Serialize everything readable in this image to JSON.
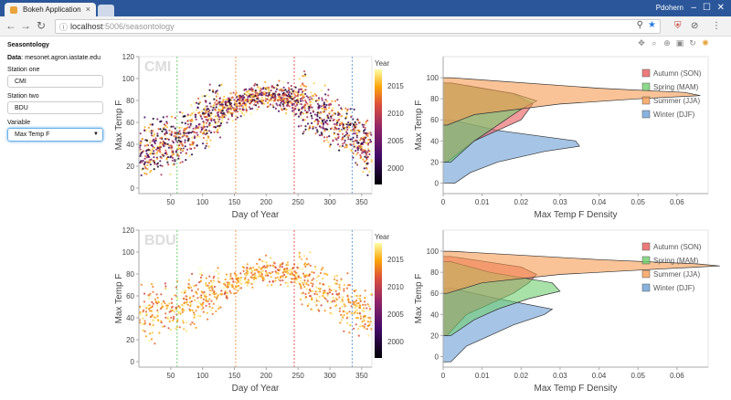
{
  "browser": {
    "tab_title": "Bokeh Application",
    "tab_close": "×",
    "user": "Pdohern",
    "url_host": "localhost",
    "url_rest": ":5006/seasontology"
  },
  "sidebar": {
    "title": "Seasontology",
    "data_label": "Data",
    "data_source": "mesonet.agron.iastate.edu",
    "station_one_label": "Station one",
    "station_one_value": "CMI",
    "station_two_label": "Station two",
    "station_two_value": "BDU",
    "variable_label": "Variable",
    "variable_value": "Max Temp F"
  },
  "scatter_axes": {
    "xlabel": "Day of Year",
    "ylabel": "Max Temp F",
    "xticks": [
      "50",
      "100",
      "150",
      "200",
      "250",
      "300",
      "350"
    ],
    "yticks": [
      "0",
      "20",
      "40",
      "60",
      "80",
      "100",
      "120"
    ],
    "colorbar_title": "Year",
    "colorbar_ticks": [
      "2000",
      "2005",
      "2010",
      "2015"
    ]
  },
  "density_axes": {
    "xlabel": "Max Temp F Density",
    "ylabel": "Max Temp F",
    "xticks": [
      "0",
      "0.01",
      "0.02",
      "0.03",
      "0.04",
      "0.05",
      "0.06"
    ],
    "yticks": [
      "0",
      "20",
      "40",
      "60",
      "80",
      "100"
    ],
    "legend": [
      "Autumn (SON)",
      "Spring (MAM)",
      "Summer (JJA)",
      "Winter (DJF)"
    ],
    "colors": [
      "#e8595a",
      "#6fcf6f",
      "#f59b52",
      "#6a9fd6"
    ]
  },
  "chart_data": [
    {
      "type": "scatter",
      "title": "CMI",
      "xlabel": "Day of Year",
      "ylabel": "Max Temp F",
      "xlim": [
        0,
        366
      ],
      "ylim": [
        -5,
        120
      ],
      "color_by": "Year",
      "color_range": [
        1997,
        2018
      ],
      "season_boundaries_doy": [
        60,
        152,
        244,
        335
      ],
      "typical_max_temp_by_doy": {
        "x": [
          1,
          60,
          120,
          200,
          260,
          335,
          366
        ],
        "y": [
          32,
          42,
          70,
          86,
          78,
          48,
          33
        ]
      }
    },
    {
      "type": "area",
      "title": "",
      "xlabel": "Max Temp F Density",
      "ylabel": "Max Temp F",
      "ylim": [
        -10,
        120
      ],
      "series": [
        {
          "name": "Autumn (SON)",
          "y": [
            20,
            40,
            50,
            60,
            70,
            75,
            85,
            95
          ],
          "density": [
            0.001,
            0.008,
            0.014,
            0.02,
            0.022,
            0.023,
            0.018,
            0.002
          ]
        },
        {
          "name": "Spring (MAM)",
          "y": [
            20,
            40,
            50,
            60,
            70,
            78,
            85,
            95
          ],
          "density": [
            0.002,
            0.008,
            0.012,
            0.016,
            0.02,
            0.024,
            0.018,
            0.002
          ]
        },
        {
          "name": "Summer (JJA)",
          "y": [
            55,
            65,
            75,
            80,
            83,
            86,
            90,
            100
          ],
          "density": [
            0.001,
            0.008,
            0.03,
            0.05,
            0.066,
            0.062,
            0.04,
            0.002
          ]
        },
        {
          "name": "Winter (DJF)",
          "y": [
            0,
            10,
            20,
            30,
            35,
            40,
            50,
            60
          ],
          "density": [
            0.003,
            0.007,
            0.014,
            0.026,
            0.035,
            0.034,
            0.014,
            0.002
          ]
        }
      ]
    },
    {
      "type": "scatter",
      "title": "BDU",
      "xlabel": "Day of Year",
      "ylabel": "Max Temp F",
      "xlim": [
        0,
        366
      ],
      "ylim": [
        -5,
        120
      ],
      "color_by": "Year",
      "color_range": [
        1997,
        2018
      ],
      "season_boundaries_doy": [
        60,
        152,
        244,
        335
      ],
      "typical_max_temp_by_doy": {
        "x": [
          1,
          60,
          120,
          200,
          260,
          335,
          366
        ],
        "y": [
          42,
          48,
          64,
          84,
          76,
          50,
          42
        ]
      }
    },
    {
      "type": "area",
      "title": "",
      "xlabel": "Max Temp F Density",
      "ylabel": "Max Temp F",
      "ylim": [
        -10,
        120
      ],
      "series": [
        {
          "name": "Autumn (SON)",
          "y": [
            20,
            40,
            50,
            60,
            70,
            78,
            85,
            95
          ],
          "density": [
            0.001,
            0.006,
            0.012,
            0.018,
            0.022,
            0.024,
            0.02,
            0.002
          ]
        },
        {
          "name": "Spring (MAM)",
          "y": [
            20,
            35,
            45,
            55,
            62,
            70,
            80,
            90
          ],
          "density": [
            0.002,
            0.008,
            0.014,
            0.022,
            0.03,
            0.028,
            0.012,
            0.002
          ]
        },
        {
          "name": "Summer (JJA)",
          "y": [
            60,
            70,
            78,
            83,
            86,
            88,
            92,
            100
          ],
          "density": [
            0.001,
            0.01,
            0.03,
            0.055,
            0.071,
            0.065,
            0.04,
            0.002
          ]
        },
        {
          "name": "Winter (DJF)",
          "y": [
            -5,
            10,
            20,
            30,
            40,
            45,
            55,
            65
          ],
          "density": [
            0.002,
            0.006,
            0.012,
            0.018,
            0.026,
            0.028,
            0.014,
            0.002
          ]
        }
      ]
    }
  ]
}
